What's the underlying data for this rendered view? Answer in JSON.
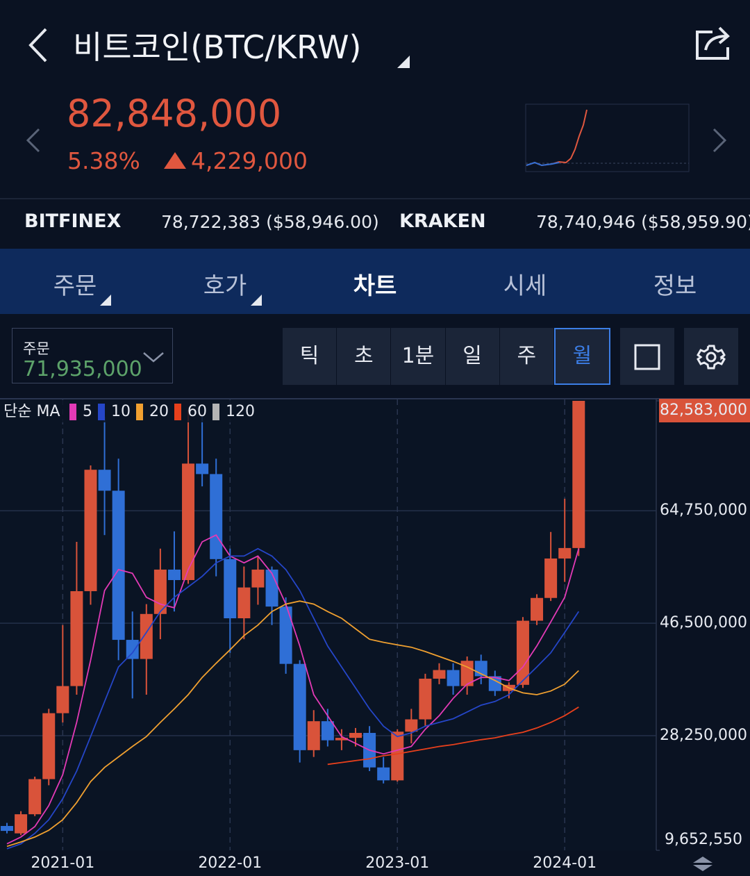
{
  "header": {
    "title": "비트코인(BTC/KRW)"
  },
  "quote": {
    "price": "82,848,000",
    "change_percent": "5.38%",
    "change": "4,229,000"
  },
  "exchanges": [
    {
      "name": "BITFINEX",
      "price": "78,722,383 ($58,946.00)"
    },
    {
      "name": "KRAKEN",
      "price": "78,740,946 ($58,959.90)"
    }
  ],
  "tabs": [
    "주문",
    "호가",
    "차트",
    "시세",
    "정보"
  ],
  "active_tab": 2,
  "toolbar": {
    "order_label": "주문",
    "order_price": "71,935,000",
    "periods": [
      "틱",
      "초",
      "1분",
      "일",
      "주",
      "월"
    ],
    "active_period": 5
  },
  "chart_data": {
    "type": "candlestick",
    "legend_title": "단순 MA",
    "categories": [
      null,
      null,
      null,
      null,
      "2021-01",
      null,
      null,
      null,
      null,
      null,
      null,
      null,
      null,
      null,
      null,
      null,
      "2022-01",
      null,
      null,
      null,
      null,
      null,
      null,
      null,
      null,
      null,
      null,
      null,
      "2023-01",
      null,
      null,
      null,
      null,
      null,
      null,
      null,
      null,
      null,
      null,
      null,
      "2024-01",
      null
    ],
    "open": [
      13600000,
      12400000,
      15500000,
      21200000,
      31900000,
      36300000,
      51700000,
      71400000,
      68000000,
      43800000,
      40700000,
      48000000,
      55200000,
      53500000,
      72400000,
      70700000,
      56900000,
      47300000,
      52300000,
      55200000,
      49200000,
      39900000,
      25900000,
      30600000,
      27500000,
      27900000,
      28700000,
      23100000,
      21000000,
      28900000,
      30900000,
      37500000,
      38900000,
      36300000,
      40400000,
      37900000,
      35500000,
      36500000,
      46900000,
      50600000,
      57000000,
      58700000
    ],
    "high": [
      14100000,
      16000000,
      21600000,
      32600000,
      46200000,
      59700000,
      72100000,
      80000000,
      73200000,
      48400000,
      49600000,
      58600000,
      61400000,
      81100000,
      80000000,
      73200000,
      58600000,
      55700000,
      57400000,
      55700000,
      50700000,
      40500000,
      32400000,
      32600000,
      29300000,
      29500000,
      29800000,
      24800000,
      29300000,
      32600000,
      38300000,
      40000000,
      40000000,
      41100000,
      41400000,
      38800000,
      36900000,
      47500000,
      51200000,
      61300000,
      66700000,
      82583000
    ],
    "low": [
      12400000,
      12100000,
      15200000,
      20200000,
      30400000,
      34900000,
      49500000,
      60800000,
      40500000,
      34300000,
      34900000,
      43900000,
      48400000,
      52900000,
      68700000,
      54100000,
      41700000,
      43900000,
      49500000,
      46200000,
      38300000,
      23900000,
      24800000,
      26500000,
      25900000,
      26500000,
      22500000,
      20500000,
      20800000,
      27000000,
      29800000,
      36600000,
      34900000,
      34900000,
      36600000,
      34700000,
      34300000,
      36000000,
      46200000,
      50100000,
      53200000,
      57400000
    ],
    "close": [
      12800000,
      15500000,
      21200000,
      31900000,
      36300000,
      51700000,
      71400000,
      68000000,
      43800000,
      40700000,
      48000000,
      55200000,
      53500000,
      72400000,
      70700000,
      56900000,
      47300000,
      52300000,
      55200000,
      49200000,
      39900000,
      25900000,
      30600000,
      27500000,
      27900000,
      28700000,
      23100000,
      21000000,
      28900000,
      30900000,
      37500000,
      38900000,
      36300000,
      40400000,
      37900000,
      35500000,
      36500000,
      46900000,
      50600000,
      57000000,
      58700000,
      82583000
    ],
    "up_color": "#d9533a",
    "down_color": "#2f6fd6",
    "ma_series": [
      {
        "name": "5",
        "color": "#e33ab6",
        "values": [
          10700000,
          11800000,
          13500000,
          16900000,
          21900000,
          30400000,
          40500000,
          51800000,
          55200000,
          54600000,
          50700000,
          49600000,
          49000000,
          55200000,
          59700000,
          60800000,
          57400000,
          56300000,
          57400000,
          54600000,
          49600000,
          42800000,
          34900000,
          31500000,
          28100000,
          27000000,
          25900000,
          25300000,
          25900000,
          26500000,
          29300000,
          31500000,
          34300000,
          36600000,
          37700000,
          37700000,
          37200000,
          39400000,
          42800000,
          46700000,
          50700000,
          58600000
        ]
      },
      {
        "name": "10",
        "color": "#2546c8",
        "values": [
          9900000,
          10700000,
          12400000,
          14600000,
          18000000,
          22500000,
          28100000,
          33800000,
          39400000,
          41700000,
          45000000,
          48400000,
          50700000,
          52400000,
          54100000,
          56300000,
          57400000,
          57400000,
          58600000,
          57400000,
          55200000,
          51800000,
          47300000,
          42800000,
          39400000,
          36000000,
          32600000,
          29800000,
          28100000,
          28700000,
          29800000,
          30400000,
          31000000,
          32100000,
          33200000,
          33800000,
          34900000,
          37200000,
          39400000,
          41700000,
          45000000,
          48400000
        ]
      },
      {
        "name": "20",
        "color": "#f0a030",
        "values": [
          10300000,
          11000000,
          11800000,
          12900000,
          14600000,
          17400000,
          20800000,
          23100000,
          24800000,
          26500000,
          28100000,
          30400000,
          32600000,
          34900000,
          37700000,
          40000000,
          42200000,
          44500000,
          46200000,
          48400000,
          49600000,
          50100000,
          49600000,
          48400000,
          47300000,
          45600000,
          43900000,
          43400000,
          43000000,
          42600000,
          41900000,
          41100000,
          40300000,
          39400000,
          38300000,
          37200000,
          36000000,
          35200000,
          34900000,
          35500000,
          36600000,
          38800000
        ]
      },
      {
        "name": "60",
        "color": "#e8401c",
        "values": [
          null,
          null,
          null,
          null,
          null,
          null,
          null,
          null,
          null,
          null,
          null,
          null,
          null,
          null,
          null,
          null,
          null,
          null,
          null,
          null,
          null,
          null,
          null,
          23600000,
          23900000,
          24200000,
          24500000,
          25000000,
          25300000,
          25700000,
          26100000,
          26500000,
          26800000,
          27200000,
          27600000,
          27900000,
          28400000,
          28800000,
          29500000,
          30400000,
          31500000,
          32900000
        ]
      },
      {
        "name": "120",
        "color": "#b4b4b4",
        "values": [
          null,
          null,
          null,
          null,
          null,
          null,
          null,
          null,
          null,
          null,
          null,
          null,
          null,
          null,
          null,
          null,
          null,
          null,
          null,
          null,
          null,
          null,
          null,
          null,
          null,
          null,
          null,
          null,
          null,
          null,
          null,
          null,
          null,
          null,
          null,
          null,
          null,
          null,
          null,
          null,
          null,
          null
        ]
      }
    ],
    "ylim": [
      9652550,
      82583000
    ],
    "yticks": [
      {
        "value": 9652550,
        "label": "9,652,550"
      },
      {
        "value": 28250000,
        "label": "28,250,000"
      },
      {
        "value": 46500000,
        "label": "46,500,000"
      },
      {
        "value": 64750000,
        "label": "64,750,000"
      },
      {
        "value": 82583000,
        "label": "82,583,000"
      }
    ],
    "grid": true
  }
}
